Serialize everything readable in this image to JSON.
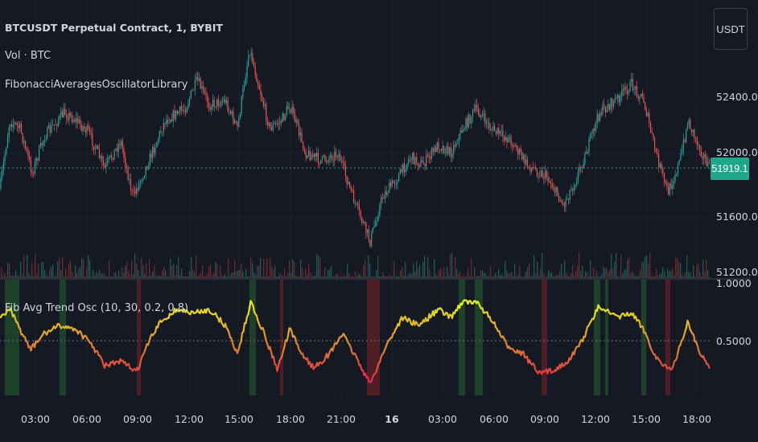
{
  "header": {
    "symbol_line": "BTCUSDT Perpetual Contract, 1, BYBIT",
    "volume_line": "Vol · BTC",
    "library_line": "FibonacciAveragesOscillatorLibrary"
  },
  "oscillator": {
    "legend": "Fib Avg Trend Osc (10, 30, 0.2, 0.8)",
    "scale_labels": [
      "1.0000",
      "0.5000"
    ]
  },
  "price_axis": {
    "labels": [
      "52400.0",
      "52000.0",
      "51600.0",
      "51200.0"
    ],
    "current_price": "51919.1",
    "currency_button": "USDT"
  },
  "time_axis": {
    "labels": [
      "03:00",
      "06:00",
      "09:00",
      "12:00",
      "15:00",
      "18:00",
      "21:00",
      "16",
      "03:00",
      "06:00",
      "09:00",
      "12:00",
      "15:00",
      "18:00"
    ]
  },
  "colors": {
    "background": "#151924",
    "bull": "#26a69a",
    "bear": "#ef5350",
    "price_line": "#1fa78b",
    "osc_high": "#e6f01e",
    "osc_mid": "#e08a2a",
    "osc_low": "#e0204a",
    "bg_green": "#1f4a2a",
    "bg_red": "#5a1f24"
  }
}
